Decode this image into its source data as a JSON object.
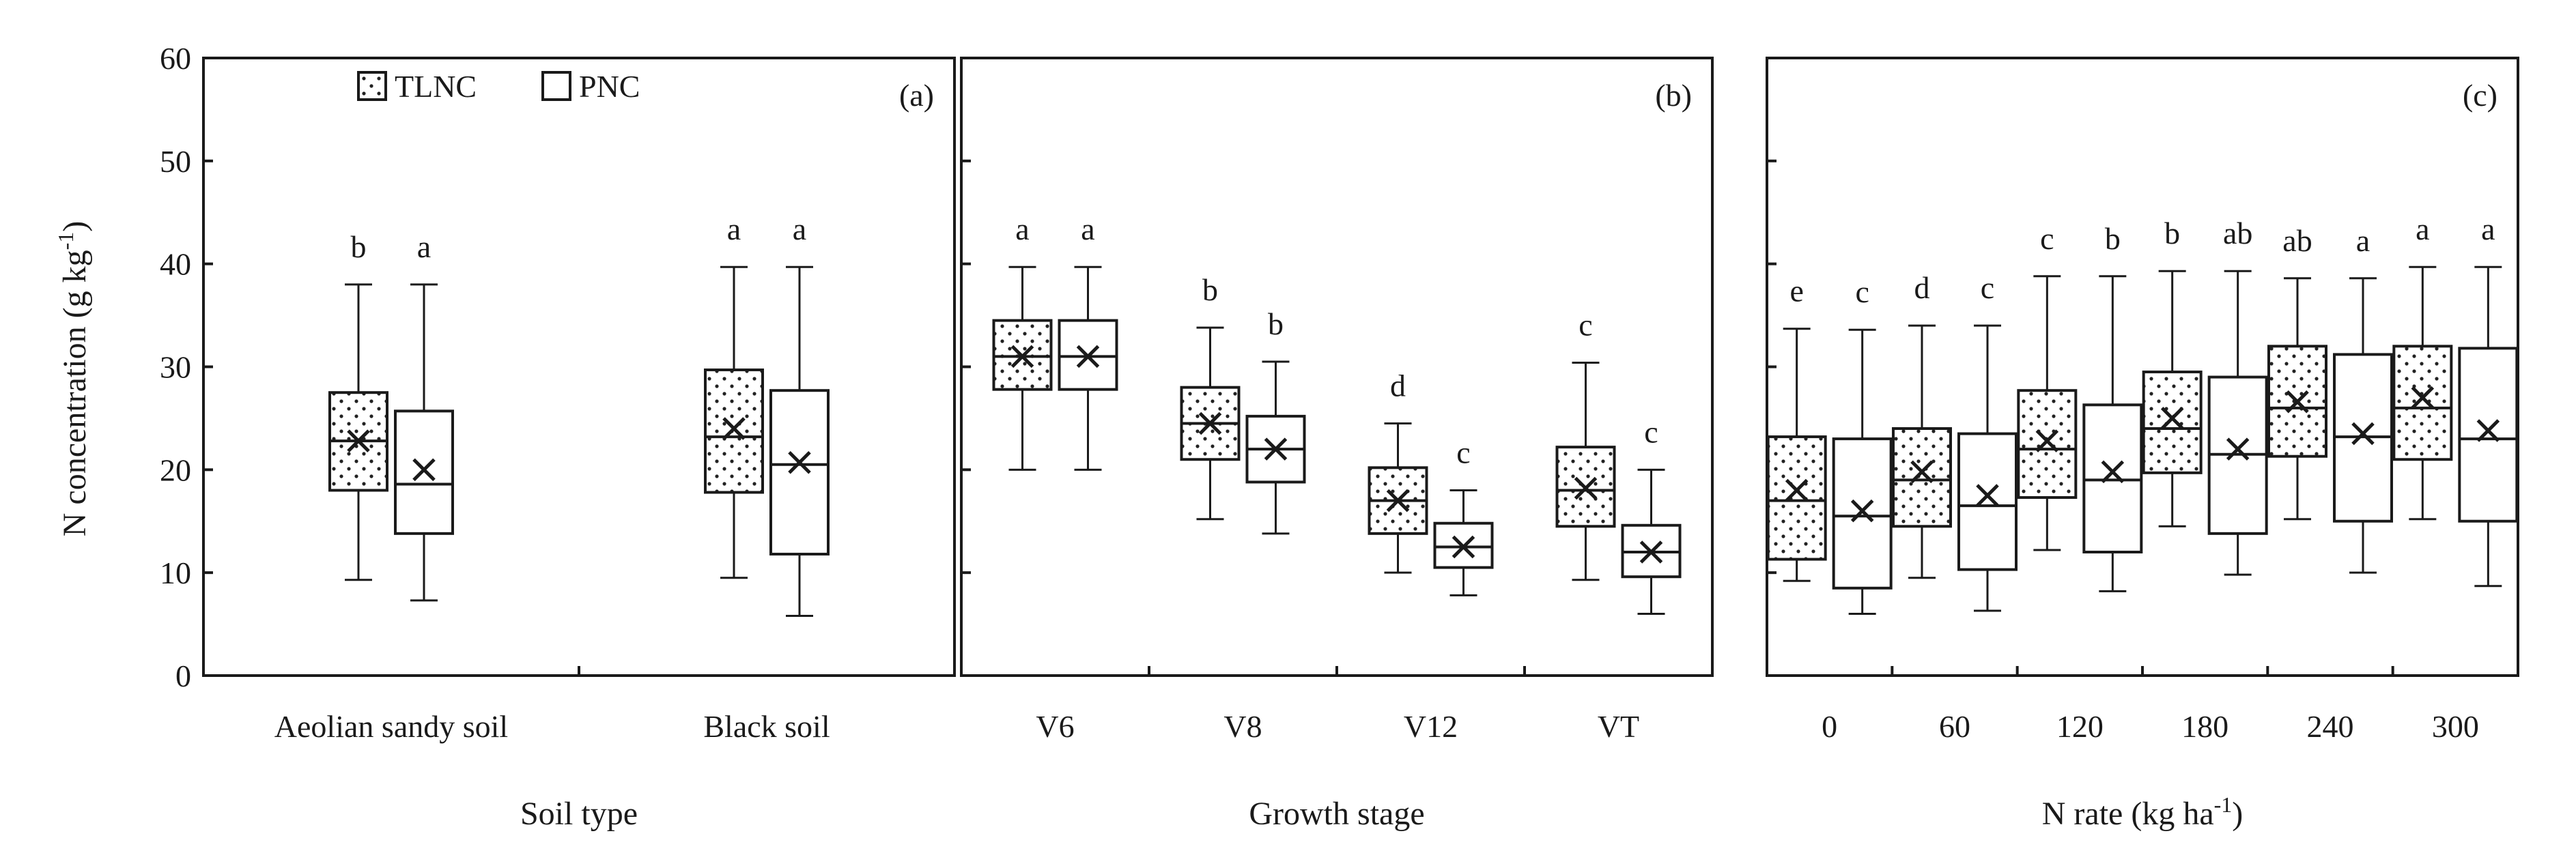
{
  "chart_data": [
    {
      "type": "box",
      "panel_label": "(a)",
      "xlabel": "Soil type",
      "ylabel": "N concentration (g kg-1)",
      "ylabel_parts": {
        "main": "N concentration (g kg",
        "sup": "-1",
        "close": ")"
      },
      "ylim": [
        0,
        60
      ],
      "yticks": [
        0,
        10,
        20,
        30,
        40,
        50,
        60
      ],
      "legend": {
        "position": "top-left",
        "entries": [
          "TLNC",
          "PNC"
        ]
      },
      "categories": [
        "Aeolian sandy soil",
        "Black soil"
      ],
      "series": [
        {
          "name": "TLNC",
          "pattern": "dotted",
          "stats": [
            {
              "min": 9.3,
              "q1": 18.0,
              "median": 22.8,
              "q3": 27.5,
              "max": 38.0,
              "mean": 22.8,
              "letter": "b"
            },
            {
              "min": 9.5,
              "q1": 17.8,
              "median": 23.2,
              "q3": 29.7,
              "max": 39.7,
              "mean": 24.0,
              "letter": "a"
            }
          ]
        },
        {
          "name": "PNC",
          "pattern": "open",
          "stats": [
            {
              "min": 7.3,
              "q1": 13.8,
              "median": 18.6,
              "q3": 25.7,
              "max": 38.0,
              "mean": 20.0,
              "letter": "a"
            },
            {
              "min": 5.8,
              "q1": 11.8,
              "median": 20.5,
              "q3": 27.7,
              "max": 39.7,
              "mean": 20.7,
              "letter": "a"
            }
          ]
        }
      ]
    },
    {
      "type": "box",
      "panel_label": "(b)",
      "xlabel": "Growth stage",
      "ylim": [
        0,
        60
      ],
      "categories": [
        "V6",
        "V8",
        "V12",
        "VT"
      ],
      "series": [
        {
          "name": "TLNC",
          "pattern": "dotted",
          "stats": [
            {
              "min": 20.0,
              "q1": 27.8,
              "median": 31.0,
              "q3": 34.5,
              "max": 39.7,
              "mean": 31.0,
              "letter": "a"
            },
            {
              "min": 15.2,
              "q1": 21.0,
              "median": 24.5,
              "q3": 28.0,
              "max": 33.8,
              "mean": 24.5,
              "letter": "b"
            },
            {
              "min": 10.0,
              "q1": 13.8,
              "median": 17.0,
              "q3": 20.2,
              "max": 24.5,
              "mean": 17.0,
              "letter": "d"
            },
            {
              "min": 9.3,
              "q1": 14.5,
              "median": 18.0,
              "q3": 22.2,
              "max": 30.4,
              "mean": 18.2,
              "letter": "c"
            }
          ]
        },
        {
          "name": "PNC",
          "pattern": "open",
          "stats": [
            {
              "min": 20.0,
              "q1": 27.8,
              "median": 31.0,
              "q3": 34.5,
              "max": 39.7,
              "mean": 31.0,
              "letter": "a"
            },
            {
              "min": 13.8,
              "q1": 18.8,
              "median": 22.0,
              "q3": 25.2,
              "max": 30.5,
              "mean": 22.0,
              "letter": "b"
            },
            {
              "min": 7.8,
              "q1": 10.5,
              "median": 12.5,
              "q3": 14.8,
              "max": 18.0,
              "mean": 12.5,
              "letter": "c"
            },
            {
              "min": 6.0,
              "q1": 9.6,
              "median": 12.0,
              "q3": 14.6,
              "max": 20.0,
              "mean": 12.0,
              "letter": "c"
            }
          ]
        }
      ]
    },
    {
      "type": "box",
      "panel_label": "(c)",
      "xlabel": "N rate (kg ha-1)",
      "xlabel_parts": {
        "main": "N rate (kg ha",
        "sup": "-1",
        "close": ")"
      },
      "ylim": [
        0,
        60
      ],
      "categories": [
        "0",
        "60",
        "120",
        "180",
        "240",
        "300"
      ],
      "series": [
        {
          "name": "TLNC",
          "pattern": "dotted",
          "stats": [
            {
              "min": 9.2,
              "q1": 11.3,
              "median": 17.0,
              "q3": 23.2,
              "max": 33.7,
              "mean": 18.0,
              "letter": "e"
            },
            {
              "min": 9.5,
              "q1": 14.5,
              "median": 19.0,
              "q3": 24.0,
              "max": 34.0,
              "mean": 19.8,
              "letter": "d"
            },
            {
              "min": 12.2,
              "q1": 17.3,
              "median": 22.0,
              "q3": 27.7,
              "max": 38.8,
              "mean": 22.8,
              "letter": "c"
            },
            {
              "min": 14.5,
              "q1": 19.7,
              "median": 24.0,
              "q3": 29.5,
              "max": 39.3,
              "mean": 25.0,
              "letter": "b"
            },
            {
              "min": 15.2,
              "q1": 21.3,
              "median": 26.0,
              "q3": 32.0,
              "max": 38.6,
              "mean": 26.6,
              "letter": "ab"
            },
            {
              "min": 15.2,
              "q1": 21.0,
              "median": 26.0,
              "q3": 32.0,
              "max": 39.7,
              "mean": 27.0,
              "letter": "a"
            }
          ]
        },
        {
          "name": "PNC",
          "pattern": "open",
          "stats": [
            {
              "min": 6.0,
              "q1": 8.5,
              "median": 15.5,
              "q3": 23.0,
              "max": 33.6,
              "mean": 16.0,
              "letter": "c"
            },
            {
              "min": 6.3,
              "q1": 10.3,
              "median": 16.5,
              "q3": 23.5,
              "max": 34.0,
              "mean": 17.5,
              "letter": "c"
            },
            {
              "min": 8.2,
              "q1": 12.0,
              "median": 19.0,
              "q3": 26.3,
              "max": 38.8,
              "mean": 19.8,
              "letter": "b"
            },
            {
              "min": 9.8,
              "q1": 13.8,
              "median": 21.5,
              "q3": 29.0,
              "max": 39.3,
              "mean": 22.0,
              "letter": "ab"
            },
            {
              "min": 10.0,
              "q1": 15.0,
              "median": 23.2,
              "q3": 31.2,
              "max": 38.6,
              "mean": 23.5,
              "letter": "a"
            },
            {
              "min": 8.7,
              "q1": 15.0,
              "median": 23.0,
              "q3": 31.8,
              "max": 39.7,
              "mean": 23.8,
              "letter": "a"
            }
          ]
        }
      ]
    }
  ]
}
